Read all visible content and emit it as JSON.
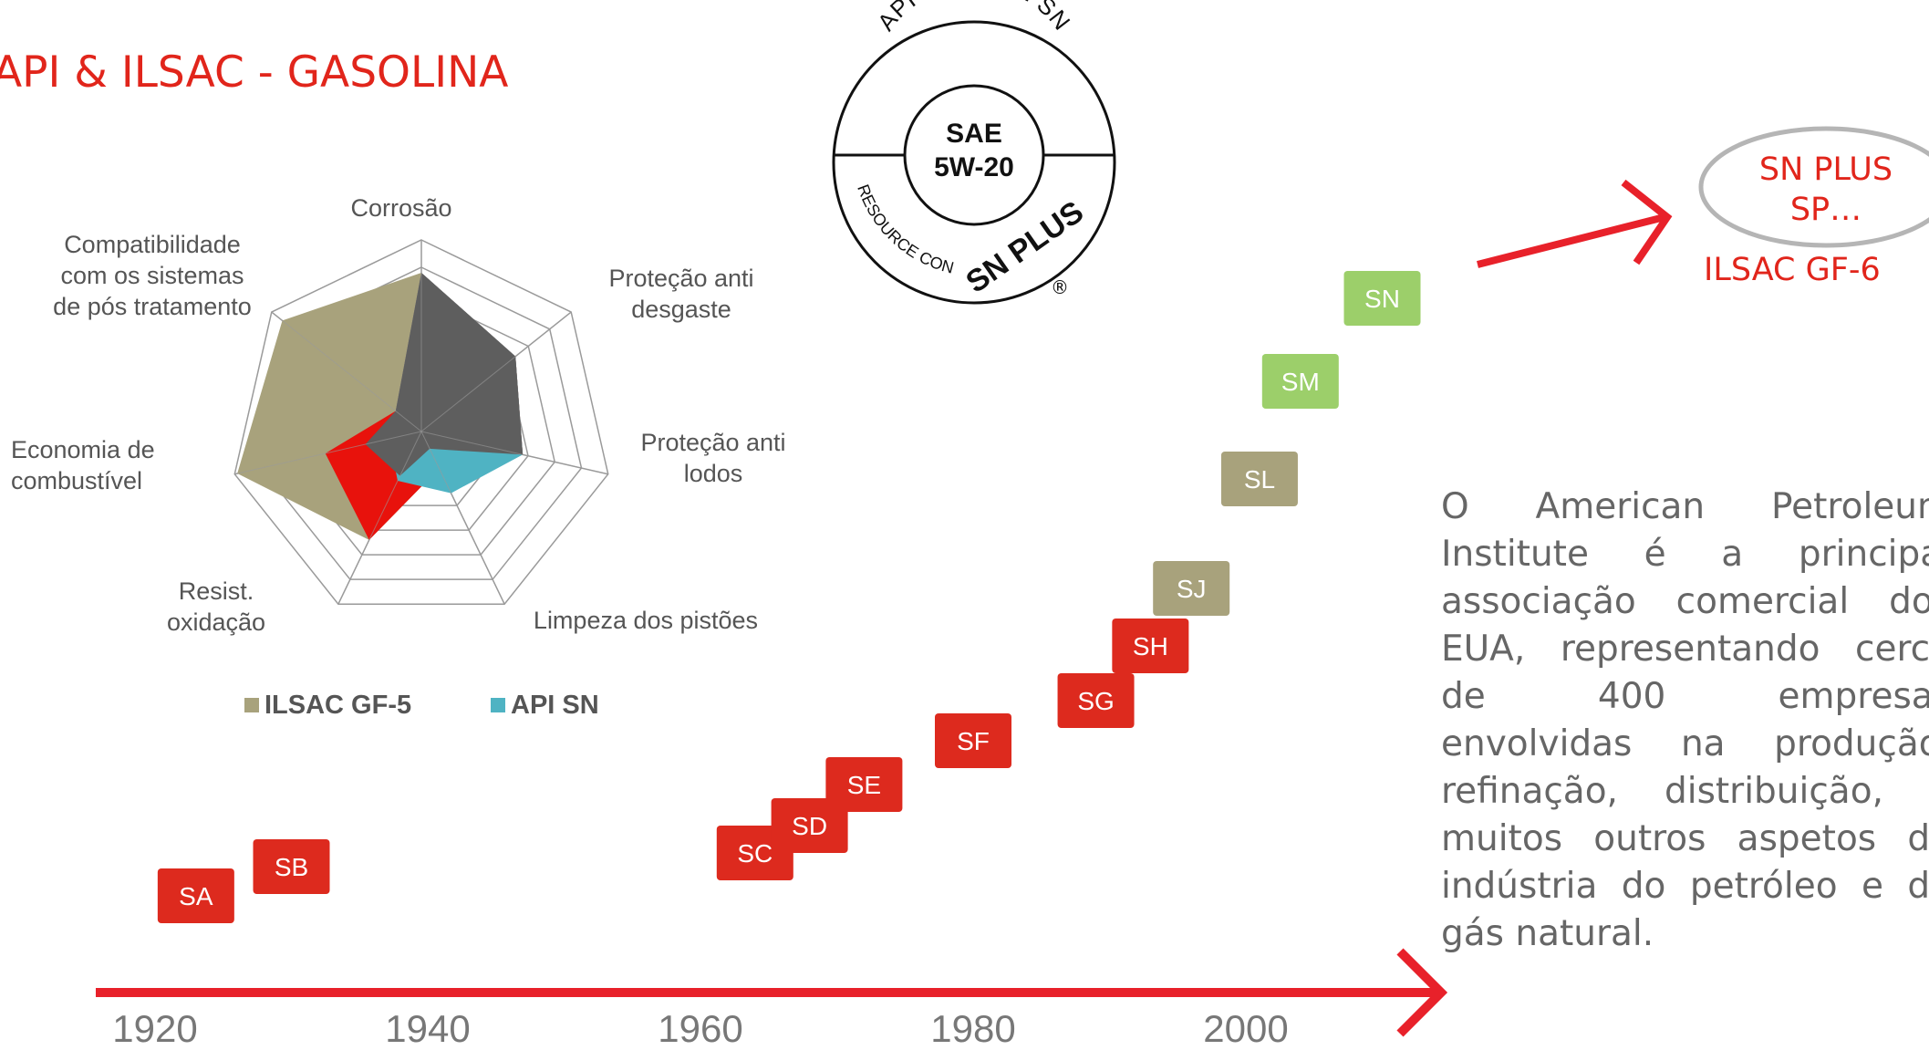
{
  "slide": {
    "title": "API & ILSAC - GASOLINA",
    "description": "O American Petroleum Institute é a principal associação comercial dos EUA, representando cerca de 400 empresas envolvidas na produção, refinação, distribuição, e muitos outros aspetos da indústria do petróleo e do gás natural."
  },
  "badge": {
    "top_text": "API SERVICE SN",
    "center_line1": "SAE",
    "center_line2": "5W-20",
    "left_text": "RESOURCE CONSERVING",
    "right_text": "SN PLUS",
    "reg_mark": "®"
  },
  "future": {
    "line1": "SN PLUS",
    "line2": "SP…",
    "ilsac": "ILSAC GF-6"
  },
  "radar": {
    "axes": [
      "Corrosão",
      "Proteção anti desgaste",
      "Proteção anti lodos",
      "Limpeza dos pistões",
      "Resist. oxidação",
      "Economia de combustível",
      "Compatibilidade com os sistemas de pós tratamento"
    ],
    "axis_label_lines": [
      [
        "Corrosão"
      ],
      [
        "Proteção anti",
        "desgaste"
      ],
      [
        "Proteção anti",
        "lodos"
      ],
      [
        "Limpeza dos pistões"
      ],
      [
        "Resist.",
        "oxidação"
      ],
      [
        "Economia de",
        "combustível"
      ],
      [
        "Compatibilidade",
        "com os sistemas",
        "de pós tratamento"
      ]
    ],
    "max": 7,
    "rings": 7,
    "series": [
      {
        "name": "ILSAC GF-5",
        "color": "#a8a27c",
        "values": [
          5.8,
          4.4,
          3.8,
          1.5,
          4.4,
          6.9,
          6.5
        ],
        "legend": true
      },
      {
        "name": "",
        "color": "#e8120c",
        "values": [
          5.8,
          4.4,
          3.8,
          1.5,
          4.4,
          3.6,
          1.2
        ],
        "legend": false
      },
      {
        "name": "API SN",
        "color": "#4fb3c3",
        "values": [
          5.8,
          4.4,
          3.8,
          2.5,
          2.0,
          1.2,
          1.2
        ],
        "legend": true
      },
      {
        "name": "",
        "color": "#5e5e5e",
        "values": [
          5.8,
          4.4,
          3.8,
          0.7,
          1.8,
          2.1,
          1.2
        ],
        "legend": false
      }
    ]
  },
  "timeline": {
    "years": [
      "1920",
      "1940",
      "1960",
      "1980",
      "2000"
    ],
    "year_values": [
      1920,
      1940,
      1960,
      1980,
      2000
    ],
    "categories": [
      {
        "label": "SA",
        "year": 1923,
        "color": "#dd2a1e"
      },
      {
        "label": "SB",
        "year": 1930,
        "color": "#dd2a1e"
      },
      {
        "label": "SC",
        "year": 1964,
        "color": "#dd2a1e"
      },
      {
        "label": "SD",
        "year": 1968,
        "color": "#dd2a1e"
      },
      {
        "label": "SE",
        "year": 1972,
        "color": "#dd2a1e"
      },
      {
        "label": "SF",
        "year": 1980,
        "color": "#dd2a1e"
      },
      {
        "label": "SG",
        "year": 1989,
        "color": "#dd2a1e"
      },
      {
        "label": "SH",
        "year": 1993,
        "color": "#dd2a1e"
      },
      {
        "label": "SJ",
        "year": 1996,
        "color": "#a8a27c"
      },
      {
        "label": "SL",
        "year": 2001,
        "color": "#a8a27c"
      },
      {
        "label": "SM",
        "year": 2004,
        "color": "#9ccf6a"
      },
      {
        "label": "SN",
        "year": 2010,
        "color": "#9ccf6a"
      }
    ]
  },
  "colors": {
    "accent": "#e1251b",
    "text_gray": "#666666",
    "grid": "#999999"
  }
}
